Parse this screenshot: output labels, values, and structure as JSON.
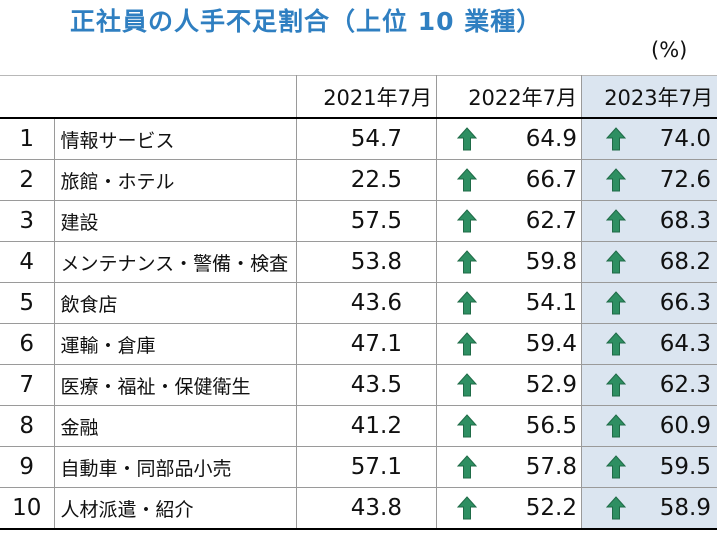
{
  "title": "正社員の人手不足割合（上位 10 業種）",
  "unit": "(%)",
  "columns": [
    "2021年7月",
    "2022年7月",
    "2023年7月"
  ],
  "arrow_color": "#2e8f62",
  "highlight_color": "#dbe5f0",
  "icon": "up-arrow-icon",
  "rows": [
    {
      "rank": "1",
      "industry": "情報サービス",
      "y2021": "54.7",
      "y2022": "64.9",
      "y2023": "74.0"
    },
    {
      "rank": "2",
      "industry": "旅館・ホテル",
      "y2021": "22.5",
      "y2022": "66.7",
      "y2023": "72.6"
    },
    {
      "rank": "3",
      "industry": "建設",
      "y2021": "57.5",
      "y2022": "62.7",
      "y2023": "68.3"
    },
    {
      "rank": "4",
      "industry": "メンテナンス・警備・検査",
      "y2021": "53.8",
      "y2022": "59.8",
      "y2023": "68.2"
    },
    {
      "rank": "5",
      "industry": "飲食店",
      "y2021": "43.6",
      "y2022": "54.1",
      "y2023": "66.3"
    },
    {
      "rank": "6",
      "industry": "運輸・倉庫",
      "y2021": "47.1",
      "y2022": "59.4",
      "y2023": "64.3"
    },
    {
      "rank": "7",
      "industry": "医療・福祉・保健衛生",
      "y2021": "43.5",
      "y2022": "52.9",
      "y2023": "62.3"
    },
    {
      "rank": "8",
      "industry": "金融",
      "y2021": "41.2",
      "y2022": "56.5",
      "y2023": "60.9"
    },
    {
      "rank": "9",
      "industry": "自動車・同部品小売",
      "y2021": "57.1",
      "y2022": "57.8",
      "y2023": "59.5"
    },
    {
      "rank": "10",
      "industry": "人材派遣・紹介",
      "y2021": "43.8",
      "y2022": "52.2",
      "y2023": "58.9"
    }
  ]
}
